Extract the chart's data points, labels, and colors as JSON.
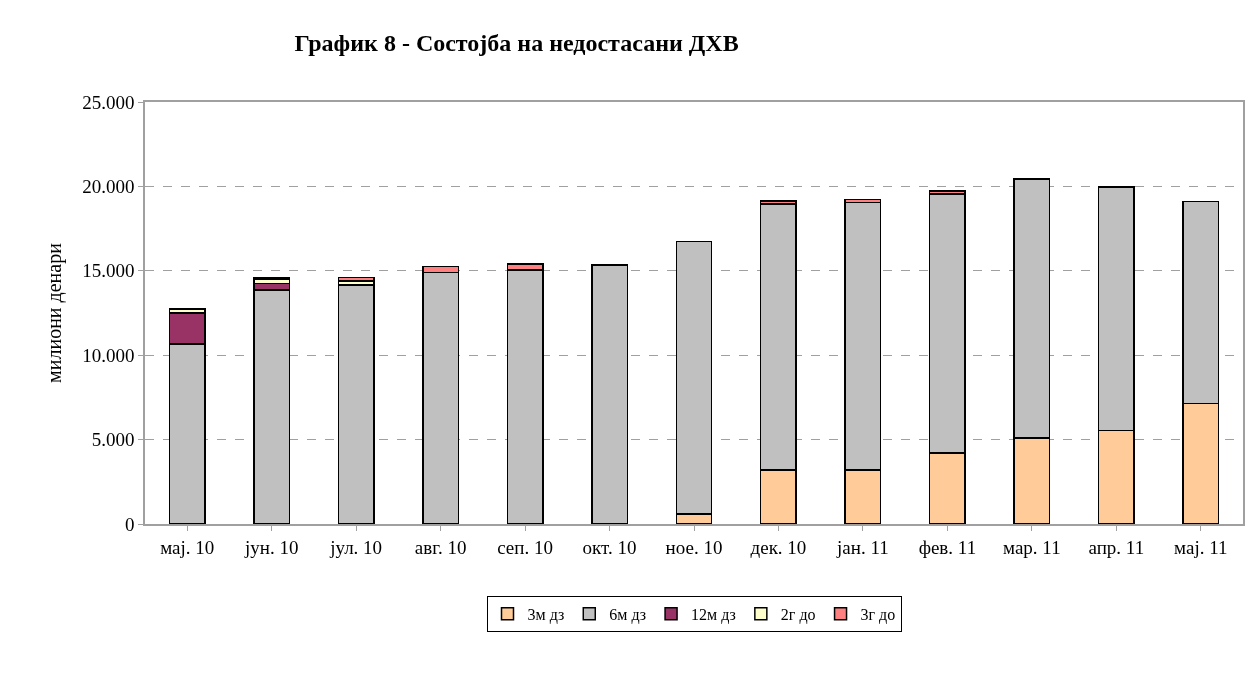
{
  "chart_data": {
    "type": "bar",
    "stacked": true,
    "title": "График 8 - Состојба на недостасани ДХВ",
    "ylabel": "милиони денари",
    "categories": [
      "мај. 10",
      "јун. 10",
      "јул. 10",
      "авг. 10",
      "сеп. 10",
      "окт. 10",
      "ное. 10",
      "дек. 10",
      "јан. 11",
      "фев. 11",
      "мар. 11",
      "апр. 11",
      "мај. 11"
    ],
    "series": [
      {
        "name": "3м дз",
        "color": "#ffcc99",
        "values": [
          null,
          null,
          null,
          null,
          null,
          null,
          600,
          3200,
          3200,
          4200,
          5100,
          5550,
          7150
        ]
      },
      {
        "name": "6м дз",
        "color": "#c0c0c0",
        "values": [
          10650,
          13850,
          14150,
          14900,
          15050,
          15350,
          16150,
          15750,
          15850,
          15350,
          15350,
          14400,
          11950
        ]
      },
      {
        "name": "12м дз",
        "color": "#993366",
        "values": [
          1850,
          400,
          null,
          null,
          null,
          null,
          null,
          null,
          null,
          null,
          null,
          null,
          null
        ]
      },
      {
        "name": "2г до",
        "color": "#ffffcc",
        "values": [
          250,
          250,
          250,
          null,
          null,
          null,
          null,
          null,
          null,
          null,
          null,
          null,
          null
        ]
      },
      {
        "name": "3г до",
        "color": "#ff8080",
        "values": [
          null,
          100,
          200,
          350,
          350,
          null,
          null,
          180,
          180,
          180,
          null,
          null,
          null
        ]
      }
    ],
    "ylim": [
      0,
      25000
    ],
    "yticks": [
      {
        "value": 0,
        "label": "0"
      },
      {
        "value": 5000,
        "label": "5.000"
      },
      {
        "value": 10000,
        "label": "10.000"
      },
      {
        "value": 15000,
        "label": "15.000"
      },
      {
        "value": 20000,
        "label": "20.000"
      },
      {
        "value": 25000,
        "label": "25.000"
      }
    ],
    "grid": "y",
    "legend": "bottom"
  }
}
